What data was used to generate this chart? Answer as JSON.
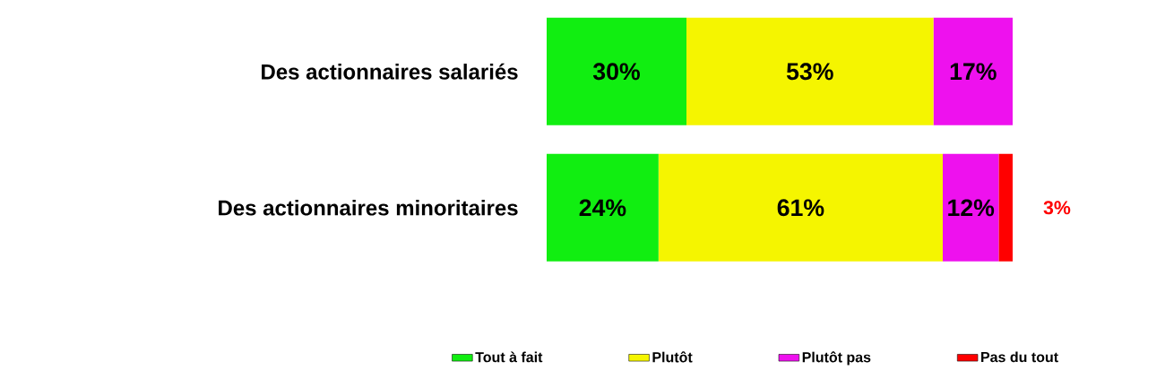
{
  "chart_data": {
    "type": "bar",
    "orientation": "horizontal",
    "stacked": true,
    "legend": "bottom",
    "categories": [
      "Des actionnaires salariés",
      "Des actionnaires minoritaires"
    ],
    "series": [
      {
        "name": "Tout à fait",
        "color": "#11ee11",
        "values": [
          30,
          24
        ],
        "value_labels": [
          "30%",
          "24%"
        ]
      },
      {
        "name": "Plutôt",
        "color": "#f5f500",
        "values": [
          53,
          61
        ],
        "value_labels": [
          "53%",
          "61%"
        ]
      },
      {
        "name": "Plutôt pas",
        "color": "#ee11ee",
        "values": [
          17,
          12
        ],
        "value_labels": [
          "17%",
          "12%"
        ]
      },
      {
        "name": "Pas du tout",
        "color": "#ff0000",
        "values": [
          0,
          3
        ],
        "value_labels": [
          null,
          "3%"
        ]
      }
    ]
  }
}
